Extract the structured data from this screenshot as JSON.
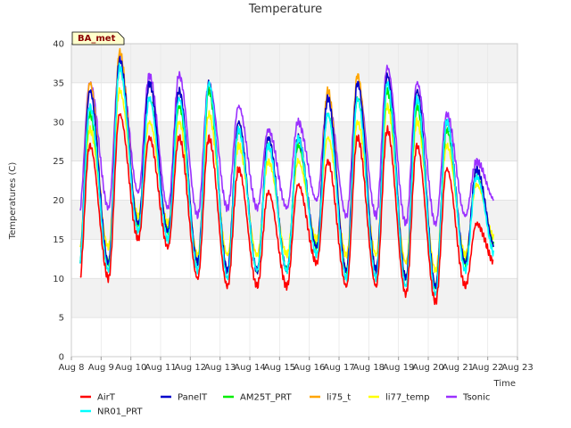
{
  "chart_data": {
    "type": "line",
    "title": "Temperature",
    "xlabel": "Time",
    "ylabel": "Temperatures (C)",
    "badge": "BA_met",
    "x_ticks": [
      "Aug 8",
      "Aug 9",
      "Aug 10",
      "Aug 11",
      "Aug 12",
      "Aug 13",
      "Aug 14",
      "Aug 15",
      "Aug 16",
      "Aug 17",
      "Aug 18",
      "Aug 19",
      "Aug 20",
      "Aug 21",
      "Aug 22",
      "Aug 23"
    ],
    "y_ticks": [
      0,
      5,
      10,
      15,
      20,
      25,
      30,
      35,
      40
    ],
    "ylim": [
      0,
      40
    ],
    "grid": true,
    "legend_position": "bottom",
    "days": [
      "Aug 8",
      "Aug 9",
      "Aug 10",
      "Aug 11",
      "Aug 12",
      "Aug 13",
      "Aug 14",
      "Aug 15",
      "Aug 16",
      "Aug 17",
      "Aug 18",
      "Aug 19",
      "Aug 20",
      "Aug 21",
      "Aug 22"
    ],
    "series": [
      {
        "name": "AirT",
        "color": "#ff0000",
        "daily_min": [
          9,
          10,
          15,
          14,
          10,
          9,
          9,
          9,
          12,
          9,
          9,
          8,
          7,
          9,
          12
        ],
        "daily_max": [
          27,
          31,
          28,
          28,
          28,
          24,
          21,
          22,
          25,
          28,
          29,
          27,
          24,
          17,
          17
        ]
      },
      {
        "name": "PanelT",
        "color": "#0000cc",
        "daily_min": [
          11,
          12,
          17,
          16,
          12,
          11,
          11,
          11,
          14,
          11,
          11,
          10,
          9,
          12,
          14
        ],
        "daily_max": [
          34,
          38,
          35,
          34,
          35,
          30,
          28,
          28,
          33,
          35,
          36,
          34,
          30,
          24,
          24
        ]
      },
      {
        "name": "AM25T_PRT",
        "color": "#00ee00",
        "daily_min": [
          11,
          12,
          17,
          16,
          12,
          11,
          11,
          11,
          14,
          11,
          11,
          10,
          9,
          12,
          14
        ],
        "daily_max": [
          31,
          37,
          33,
          32,
          34,
          29,
          27,
          27,
          31,
          33,
          34,
          32,
          29,
          23,
          22
        ]
      },
      {
        "name": "li75_t",
        "color": "#ffa500",
        "daily_min": [
          11,
          12,
          17,
          16,
          12,
          11,
          11,
          11,
          14,
          11,
          11,
          10,
          9,
          12,
          14
        ],
        "daily_max": [
          35,
          39,
          35,
          34,
          35,
          30,
          28,
          28,
          34,
          36,
          36,
          34,
          30,
          24,
          24
        ]
      },
      {
        "name": "li77_temp",
        "color": "#ffff00",
        "daily_min": [
          13,
          14,
          18,
          17,
          13,
          13,
          13,
          13,
          15,
          13,
          13,
          12,
          11,
          13,
          15
        ],
        "daily_max": [
          29,
          34,
          30,
          30,
          31,
          27,
          25,
          25,
          28,
          30,
          32,
          30,
          27,
          22,
          21
        ]
      },
      {
        "name": "Tsonic",
        "color": "#9b30ff",
        "daily_min": [
          18,
          19,
          21,
          19,
          18,
          19,
          19,
          19,
          20,
          18,
          18,
          17,
          17,
          18,
          20
        ],
        "daily_max": [
          35,
          38,
          36,
          36,
          35,
          32,
          29,
          30,
          33,
          35,
          37,
          35,
          31,
          25,
          24
        ]
      },
      {
        "name": "NR01_PRT",
        "color": "#00ffff",
        "daily_min": [
          11,
          11,
          16,
          15,
          11,
          10,
          11,
          11,
          13,
          10,
          10,
          9,
          8,
          11,
          13
        ],
        "daily_max": [
          32,
          37,
          33,
          33,
          35,
          29,
          27,
          28,
          31,
          33,
          35,
          33,
          30,
          23,
          22
        ]
      }
    ]
  }
}
